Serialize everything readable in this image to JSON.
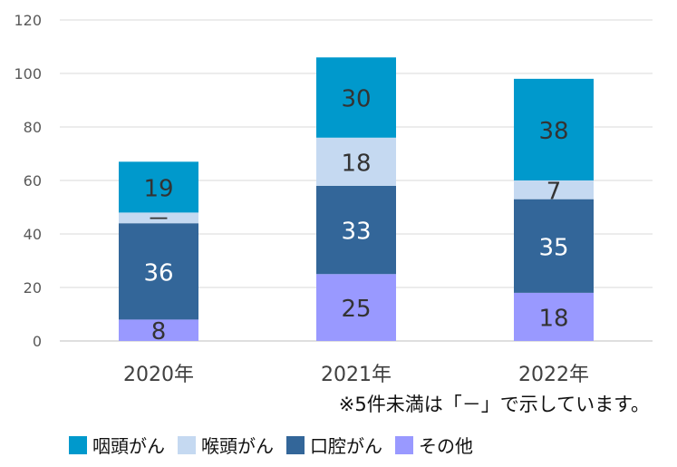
{
  "chart_data": {
    "type": "bar",
    "stacked": true,
    "categories": [
      "2020年",
      "2021年",
      "2022年"
    ],
    "series": [
      {
        "name": "その他",
        "values": [
          8,
          25,
          18
        ],
        "labels": [
          "8",
          "25",
          "18"
        ],
        "color": "#9999ff",
        "label_color": "#333333"
      },
      {
        "name": "口腔がん",
        "values": [
          36,
          33,
          35
        ],
        "labels": [
          "36",
          "33",
          "35"
        ],
        "color": "#336699",
        "label_color": "#ffffff"
      },
      {
        "name": "喉頭がん",
        "values": [
          4,
          18,
          7
        ],
        "labels": [
          "－",
          "18",
          "7"
        ],
        "color": "#c5d9f1",
        "label_color": "#333333"
      },
      {
        "name": "咽頭がん",
        "values": [
          19,
          30,
          38
        ],
        "labels": [
          "19",
          "30",
          "38"
        ],
        "color": "#0099cc",
        "label_color": "#333333"
      }
    ],
    "legend_order": [
      3,
      2,
      1,
      0
    ],
    "ylim": [
      0,
      120
    ],
    "yticks": [
      0,
      20,
      40,
      60,
      80,
      100,
      120
    ],
    "grid": true,
    "legend_position": "bottom",
    "title": "",
    "xlabel": "",
    "ylabel": ""
  },
  "note": "※5件未満は「－」で示しています。"
}
